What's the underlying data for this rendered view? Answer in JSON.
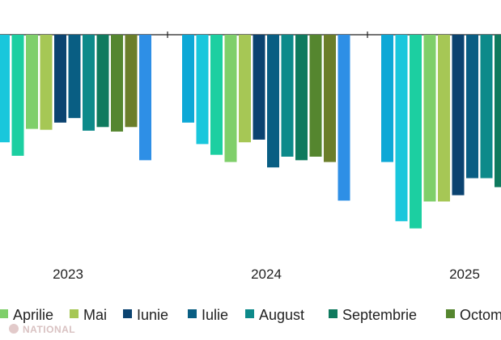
{
  "chart_data": {
    "type": "bar",
    "title": "",
    "xlabel": "",
    "ylabel": "",
    "groups": [
      {
        "label": "2023",
        "values": [
          -1.2,
          -1.35,
          -1.05,
          -1.06,
          -0.98,
          -0.93,
          -1.07,
          -1.03,
          -1.08,
          -1.03,
          -1.4
        ]
      },
      {
        "label": "2024",
        "values": [
          -0.98,
          -1.22,
          -1.34,
          -1.42,
          -1.2,
          -1.17,
          -1.48,
          -1.36,
          -1.4,
          -1.36,
          -1.42,
          -1.85
        ]
      },
      {
        "label": "2025",
        "values": [
          -1.42,
          -2.08,
          -2.16,
          -1.86,
          -1.86,
          -1.79,
          -1.6,
          -1.6,
          -1.7
        ]
      }
    ],
    "series_colors": [
      "#0da8d6",
      "#19c7dc",
      "#1ccfa1",
      "#7fcf6a",
      "#a6c755",
      "#0b4370",
      "#095e83",
      "#0d8a8a",
      "#0f7a5e",
      "#55862f",
      "#6b7e2a",
      "#2e8fe6"
    ],
    "legend": {
      "position": "bottom",
      "items": [
        {
          "label": "Aprilie",
          "color": "#7fcf6a"
        },
        {
          "label": "Mai",
          "color": "#a6c755"
        },
        {
          "label": "Iunie",
          "color": "#0b4370"
        },
        {
          "label": "Iulie",
          "color": "#095e83"
        },
        {
          "label": "August",
          "color": "#0d8a8a"
        },
        {
          "label": "Septembrie",
          "color": "#0f7a5e"
        },
        {
          "label": "Octom",
          "color": "#55862f"
        }
      ]
    },
    "watermark": "NATIONAL"
  }
}
